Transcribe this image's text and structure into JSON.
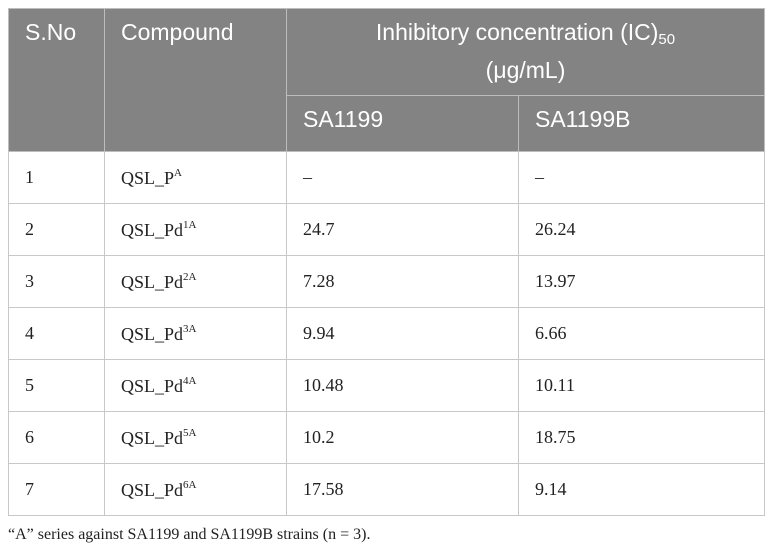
{
  "table": {
    "header": {
      "sno": "S.No",
      "compound": "Compound",
      "ic": {
        "text": "Inhibitory concentration (IC)",
        "sub": "50",
        "unit": "(μg/mL)"
      },
      "strains": [
        "SA1199",
        "SA1199B"
      ]
    },
    "rows": [
      [
        "1",
        {
          "text": "QSL_P",
          "sup": "A"
        },
        "–",
        "–"
      ],
      [
        "2",
        {
          "text": "QSL_Pd",
          "sup": "1A"
        },
        "24.7",
        "26.24"
      ],
      [
        "3",
        {
          "text": "QSL_Pd",
          "sup": "2A"
        },
        "7.28",
        "13.97"
      ],
      [
        "4",
        {
          "text": "QSL_Pd",
          "sup": "3A"
        },
        "9.94",
        "6.66"
      ],
      [
        "5",
        {
          "text": "QSL_Pd",
          "sup": "4A"
        },
        "10.48",
        "10.11"
      ],
      [
        "6",
        {
          "text": "QSL_Pd",
          "sup": "5A"
        },
        "10.2",
        "18.75"
      ],
      [
        "7",
        {
          "text": "QSL_Pd",
          "sup": "6A"
        },
        "17.58",
        "9.14"
      ]
    ],
    "footnote": "“A” series against SA1199 and SA1199B strains (n = 3)."
  }
}
